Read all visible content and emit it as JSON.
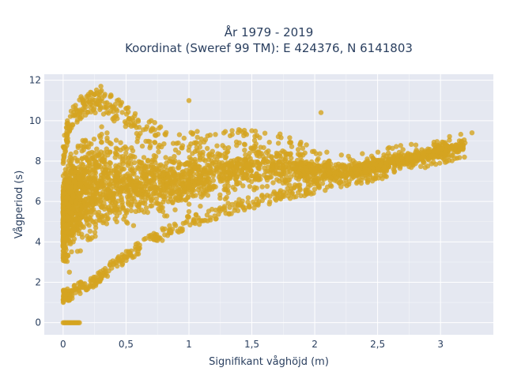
{
  "chart_data": {
    "type": "scatter",
    "title": "År 1979 - 2019",
    "subtitle": "Koordinat (Sweref 99 TM): E 424376, N 6141803",
    "xlabel": "Signifikant våghöjd (m)",
    "ylabel": "Vågperiod (s)",
    "xlim": [
      -0.15,
      3.42
    ],
    "ylim": [
      -0.6,
      12.3
    ],
    "x_ticks": [
      0,
      0.5,
      1,
      1.5,
      2,
      2.5,
      3
    ],
    "x_tick_labels": [
      "0",
      "0,5",
      "1",
      "1,5",
      "2",
      "2,5",
      "3"
    ],
    "y_ticks": [
      0,
      2,
      4,
      6,
      8,
      10,
      12
    ],
    "y_tick_labels": [
      "0",
      "2",
      "4",
      "6",
      "8",
      "10",
      "12"
    ],
    "grid": true,
    "legend": "none",
    "marker_color": "#d4a420",
    "background_color": "#e5e8f1",
    "density_envelope": {
      "description_points_x": [
        0.0,
        0.05,
        0.1,
        0.2,
        0.3,
        0.4,
        0.5,
        0.6,
        0.7,
        0.8,
        0.9,
        1.0,
        1.2,
        1.4,
        1.6,
        1.8,
        2.0,
        2.2,
        2.4,
        2.6,
        2.8,
        3.0,
        3.2
      ],
      "lower_y": [
        1.0,
        1.1,
        1.3,
        1.6,
        2.0,
        2.5,
        3.0,
        3.4,
        3.8,
        4.1,
        4.4,
        4.7,
        5.1,
        5.5,
        5.8,
        6.1,
        6.4,
        6.7,
        6.9,
        7.2,
        7.5,
        7.8,
        8.2
      ],
      "upper_y": [
        9.0,
        10.5,
        11.0,
        11.5,
        11.6,
        11.2,
        10.8,
        10.3,
        10.0,
        9.8,
        9.6,
        9.5,
        9.4,
        9.6,
        9.5,
        9.3,
        8.6,
        8.3,
        8.4,
        8.7,
        8.9,
        9.2,
        9.4
      ]
    },
    "zero_period_points": {
      "x_range": [
        0.0,
        0.13
      ],
      "y": 0
    },
    "sample_points": [
      {
        "x": 0.02,
        "y": 1.2
      },
      {
        "x": 0.05,
        "y": 2.5
      },
      {
        "x": 0.08,
        "y": 4.0
      },
      {
        "x": 0.1,
        "y": 6.0
      },
      {
        "x": 0.15,
        "y": 8.5
      },
      {
        "x": 0.2,
        "y": 11.2
      },
      {
        "x": 0.3,
        "y": 11.7
      },
      {
        "x": 0.35,
        "y": 9.0
      },
      {
        "x": 0.5,
        "y": 5.5
      },
      {
        "x": 0.7,
        "y": 10.0
      },
      {
        "x": 1.0,
        "y": 5.5
      },
      {
        "x": 1.0,
        "y": 11.0
      },
      {
        "x": 1.3,
        "y": 6.2
      },
      {
        "x": 1.5,
        "y": 9.5
      },
      {
        "x": 1.8,
        "y": 6.8
      },
      {
        "x": 2.0,
        "y": 7.0
      },
      {
        "x": 2.05,
        "y": 10.4
      },
      {
        "x": 2.3,
        "y": 7.3
      },
      {
        "x": 2.5,
        "y": 7.6
      },
      {
        "x": 2.8,
        "y": 8.2
      },
      {
        "x": 3.0,
        "y": 8.6
      },
      {
        "x": 3.15,
        "y": 9.0
      },
      {
        "x": 3.25,
        "y": 9.4
      }
    ]
  }
}
